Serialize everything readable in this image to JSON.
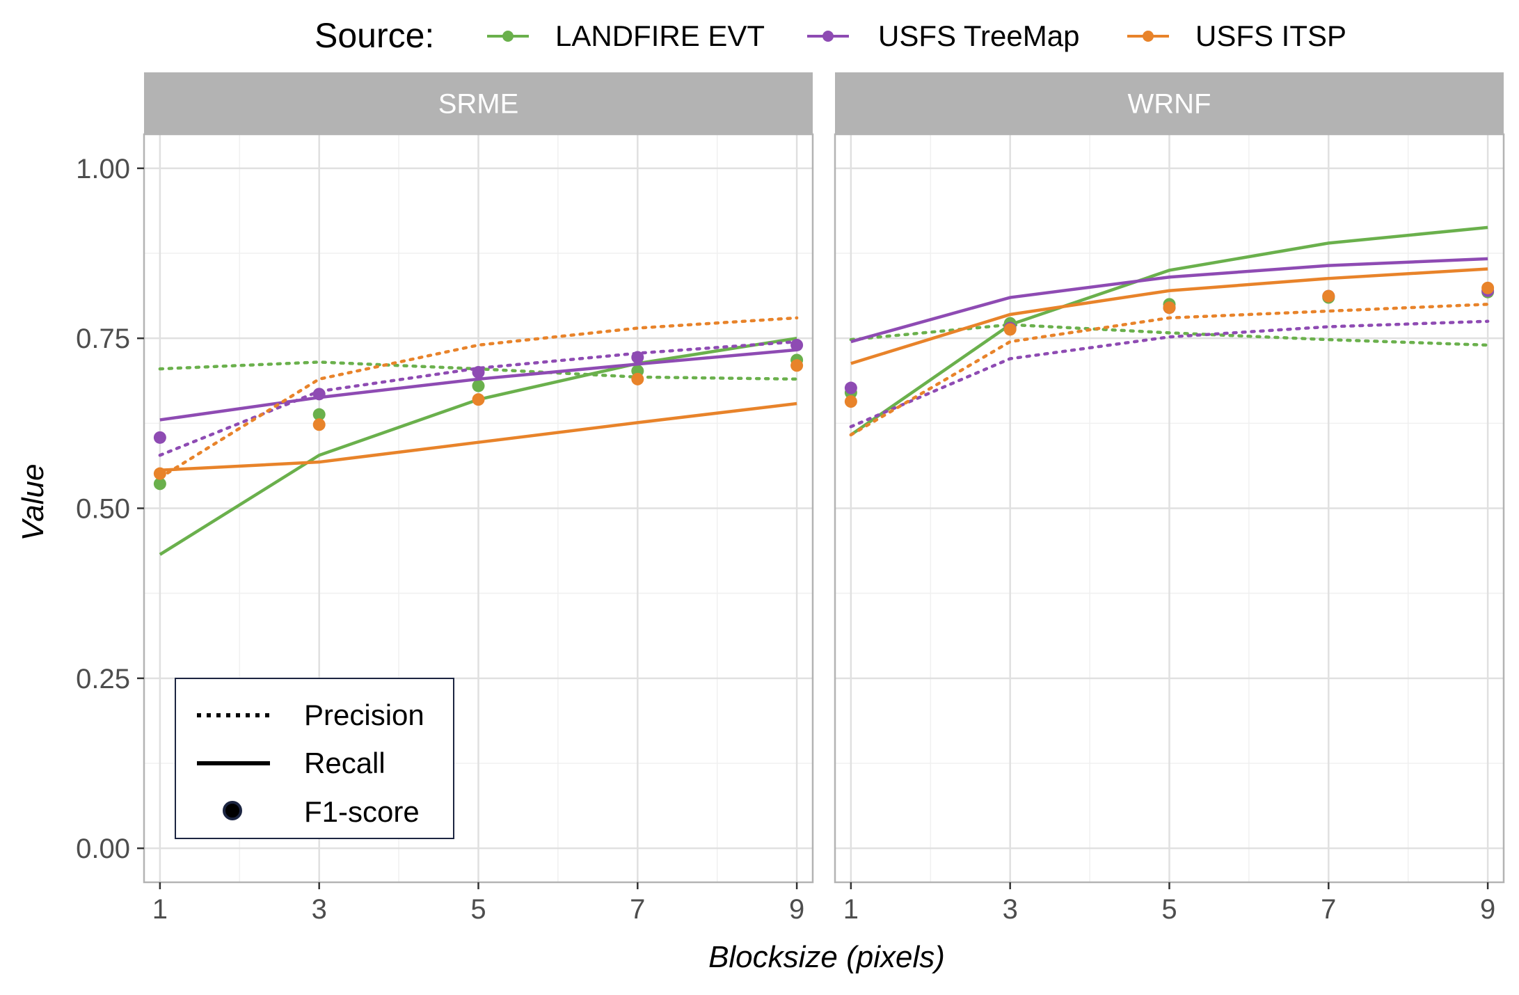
{
  "chart_data": {
    "type": "line",
    "xlabel": "Blocksize (pixels)",
    "ylabel": "Value",
    "x": [
      1,
      3,
      5,
      7,
      9
    ],
    "xlim": [
      0.8,
      9.2
    ],
    "ylim": [
      -0.05,
      1.05
    ],
    "x_ticks": [
      1,
      3,
      5,
      7,
      9
    ],
    "y_ticks": [
      0,
      0.25,
      0.5,
      0.75,
      1.0
    ],
    "y_tick_labels": [
      "0.00",
      "0.25",
      "0.50",
      "0.75",
      "1.00"
    ],
    "grid": true,
    "legend_top": {
      "title": "Source:",
      "position": "top",
      "entries": [
        {
          "label": "LANDFIRE EVT",
          "color": "#6ab04c"
        },
        {
          "label": "USFS TreeMap",
          "color": "#8e4bb3"
        },
        {
          "label": "USFS ITSP",
          "color": "#e8832a"
        }
      ]
    },
    "legend_metrics": {
      "position": "bottom-left",
      "entries": [
        {
          "label": "Precision",
          "style": "dotted"
        },
        {
          "label": "Recall",
          "style": "solid"
        },
        {
          "label": "F1-score",
          "style": "point"
        }
      ]
    },
    "panels": [
      {
        "strip": "SRME",
        "series": [
          {
            "source": "LANDFIRE EVT",
            "color": "#6ab04c",
            "precision": [
              0.705,
              0.715,
              0.705,
              0.693,
              0.69
            ],
            "recall": [
              0.432,
              0.578,
              0.66,
              0.713,
              0.75
            ],
            "f1": [
              0.536,
              0.638,
              0.68,
              0.702,
              0.718
            ]
          },
          {
            "source": "USFS TreeMap",
            "color": "#8e4bb3",
            "precision": [
              0.578,
              0.672,
              0.706,
              0.728,
              0.745
            ],
            "recall": [
              0.63,
              0.663,
              0.69,
              0.712,
              0.733
            ],
            "f1": [
              0.604,
              0.668,
              0.7,
              0.722,
              0.74
            ]
          },
          {
            "source": "USFS ITSP",
            "color": "#e8832a",
            "precision": [
              0.545,
              0.69,
              0.74,
              0.765,
              0.78
            ],
            "recall": [
              0.556,
              0.568,
              0.597,
              0.626,
              0.654
            ],
            "f1": [
              0.551,
              0.623,
              0.66,
              0.69,
              0.71
            ]
          }
        ]
      },
      {
        "strip": "WRNF",
        "series": [
          {
            "source": "LANDFIRE EVT",
            "color": "#6ab04c",
            "precision": [
              0.748,
              0.77,
              0.758,
              0.748,
              0.74
            ],
            "recall": [
              0.608,
              0.77,
              0.85,
              0.89,
              0.913
            ],
            "f1": [
              0.67,
              0.772,
              0.8,
              0.81,
              0.818
            ]
          },
          {
            "source": "USFS TreeMap",
            "color": "#8e4bb3",
            "precision": [
              0.62,
              0.72,
              0.752,
              0.767,
              0.775
            ],
            "recall": [
              0.745,
              0.81,
              0.84,
              0.857,
              0.867
            ],
            "f1": [
              0.677,
              0.765,
              0.795,
              0.812,
              0.82
            ]
          },
          {
            "source": "USFS ITSP",
            "color": "#e8832a",
            "precision": [
              0.608,
              0.745,
              0.78,
              0.79,
              0.8
            ],
            "recall": [
              0.713,
              0.785,
              0.82,
              0.838,
              0.852
            ],
            "f1": [
              0.657,
              0.763,
              0.795,
              0.812,
              0.824
            ]
          }
        ]
      }
    ]
  }
}
